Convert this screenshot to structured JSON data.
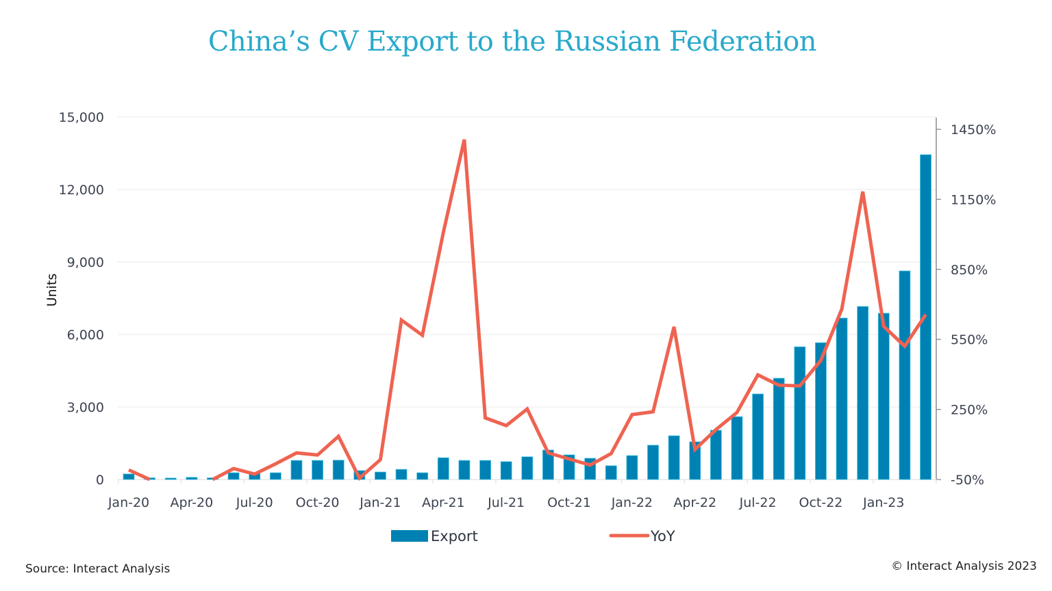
{
  "title": "China’s CV Export to the Russian Federation",
  "footer": {
    "source": "Source: Interact Analysis",
    "copyright": "© Interact Analysis 2023"
  },
  "colors": {
    "title": "#29A9CB",
    "bar": "#0081B4",
    "bar_edge": "#3EC3E3",
    "line": "#EF6351",
    "grid": "#EDEDED",
    "axis": "#8a8a8a"
  },
  "chart_data": {
    "type": "bar+line",
    "title": "China’s CV Export to the Russian Federation",
    "xlabel": "",
    "ylabel": "Units",
    "y2label": "",
    "ylim": [
      0,
      15000
    ],
    "y2lim": [
      -50,
      1500
    ],
    "yticks": [
      "0",
      "3,000",
      "6,000",
      "9,000",
      "12,000",
      "15,000"
    ],
    "ytick_values": [
      0,
      3000,
      6000,
      9000,
      12000,
      15000
    ],
    "y2ticks": [
      "-50%",
      "250%",
      "550%",
      "850%",
      "1150%",
      "1450%"
    ],
    "y2tick_values": [
      -50,
      250,
      550,
      850,
      1150,
      1450
    ],
    "xtick_labels": [
      "Jan-20",
      "Apr-20",
      "Jul-20",
      "Oct-20",
      "Jan-21",
      "Apr-21",
      "Jul-21",
      "Oct-21",
      "Jan-22",
      "Apr-22",
      "Jul-22",
      "Oct-22",
      "Jan-23"
    ],
    "grid": true,
    "legend_position": "bottom",
    "categories": [
      "Jan-20",
      "Feb-20",
      "Mar-20",
      "Apr-20",
      "May-20",
      "Jun-20",
      "Jul-20",
      "Aug-20",
      "Sep-20",
      "Oct-20",
      "Nov-20",
      "Dec-20",
      "Jan-21",
      "Feb-21",
      "Mar-21",
      "Apr-21",
      "May-21",
      "Jun-21",
      "Jul-21",
      "Aug-21",
      "Sep-21",
      "Oct-21",
      "Nov-21",
      "Dec-21",
      "Jan-22",
      "Feb-22",
      "Mar-22",
      "Apr-22",
      "May-22",
      "Jun-22",
      "Jul-22",
      "Aug-22",
      "Sep-22",
      "Oct-22",
      "Nov-22",
      "Dec-22",
      "Jan-23",
      "Feb-23",
      "Mar-23"
    ],
    "series": [
      {
        "name": "Export",
        "type": "bar",
        "axis": "left",
        "values": [
          230,
          70,
          60,
          90,
          70,
          280,
          280,
          280,
          790,
          790,
          800,
          370,
          310,
          420,
          280,
          900,
          790,
          790,
          740,
          940,
          1220,
          1020,
          880,
          570,
          990,
          1420,
          1810,
          1560,
          2040,
          2600,
          3540,
          4190,
          5490,
          5660,
          6680,
          7160,
          6880,
          8630,
          13440
        ]
      },
      {
        "name": "YoY",
        "type": "line",
        "axis": "right",
        "unit": "%",
        "values": [
          -9,
          -50,
          null,
          null,
          -50,
          -3,
          -27,
          17,
          64,
          55,
          135,
          -44,
          35,
          633,
          568,
          1008,
          1406,
          214,
          181,
          252,
          64,
          38,
          12,
          61,
          228,
          240,
          604,
          79,
          164,
          237,
          398,
          354,
          351,
          460,
          680,
          1183,
          606,
          521,
          656
        ]
      }
    ]
  },
  "legend": [
    {
      "label": "Export",
      "icon": "bar-swatch"
    },
    {
      "label": "YoY",
      "icon": "line-swatch"
    }
  ]
}
